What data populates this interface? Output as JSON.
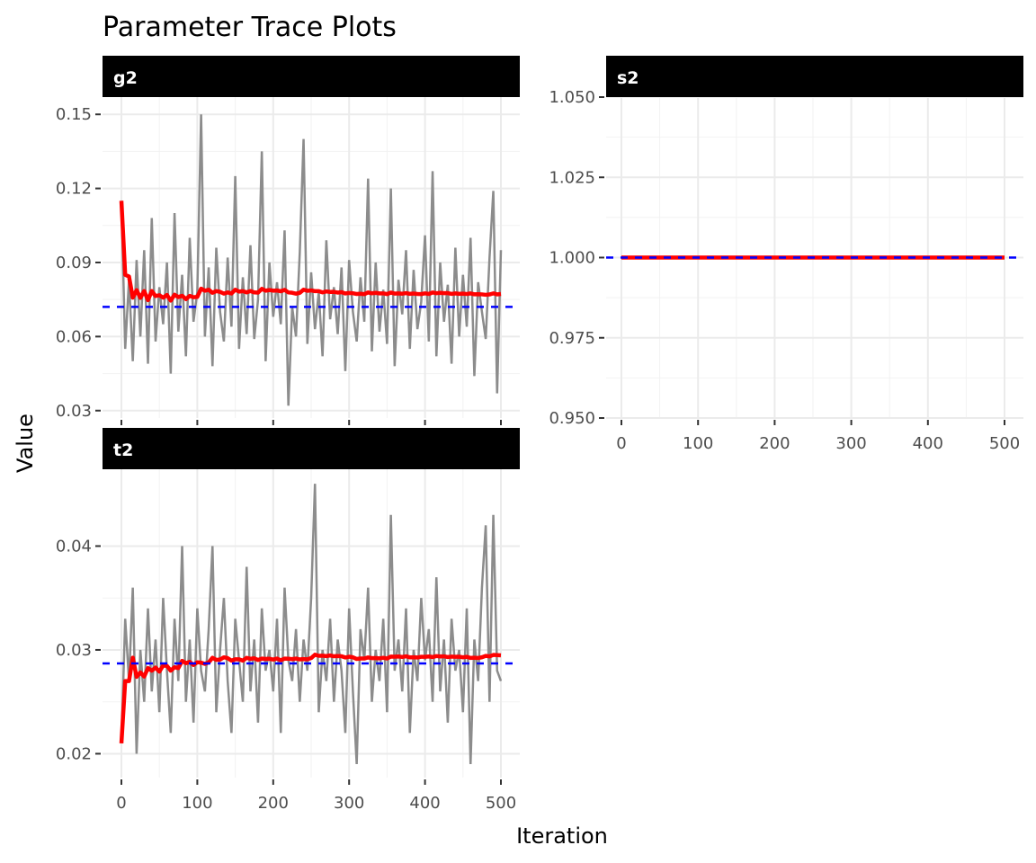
{
  "chart_data": {
    "type": "line",
    "title": "Parameter Trace Plots",
    "xlabel": "Iteration",
    "ylabel": "Value",
    "colors": {
      "trace": "#8c8c8c",
      "running_mean": "#ff0000",
      "mean": "#0000ff",
      "strip": "#000000"
    },
    "x_step": 5,
    "panels": [
      {
        "name": "g2",
        "ylim": [
          0.027,
          0.157
        ],
        "yticks": [
          "0.03",
          "0.06",
          "0.09",
          "0.12",
          "0.15"
        ],
        "ytick_values": [
          0.03,
          0.06,
          0.09,
          0.12,
          0.15
        ],
        "xticks": [],
        "mean": 0.072,
        "trace": [
          0.115,
          0.055,
          0.083,
          0.05,
          0.091,
          0.06,
          0.095,
          0.049,
          0.108,
          0.058,
          0.08,
          0.065,
          0.09,
          0.045,
          0.11,
          0.062,
          0.085,
          0.052,
          0.1,
          0.066,
          0.078,
          0.15,
          0.06,
          0.088,
          0.048,
          0.096,
          0.07,
          0.058,
          0.092,
          0.064,
          0.125,
          0.055,
          0.084,
          0.061,
          0.097,
          0.059,
          0.075,
          0.135,
          0.05,
          0.09,
          0.068,
          0.082,
          0.065,
          0.103,
          0.032,
          0.072,
          0.06,
          0.094,
          0.14,
          0.057,
          0.086,
          0.063,
          0.078,
          0.052,
          0.099,
          0.067,
          0.08,
          0.061,
          0.088,
          0.046,
          0.091,
          0.07,
          0.058,
          0.084,
          0.066,
          0.124,
          0.054,
          0.09,
          0.062,
          0.079,
          0.057,
          0.12,
          0.048,
          0.083,
          0.069,
          0.095,
          0.055,
          0.087,
          0.063,
          0.074,
          0.101,
          0.058,
          0.127,
          0.052,
          0.09,
          0.066,
          0.081,
          0.049,
          0.096,
          0.06,
          0.085,
          0.064,
          0.1,
          0.044,
          0.082,
          0.07,
          0.059,
          0.092,
          0.119,
          0.037,
          0.095
        ]
      },
      {
        "name": "s2",
        "ylim": [
          0.95,
          1.05
        ],
        "yticks": [
          "0.950",
          "0.975",
          "1.000",
          "1.025",
          "1.050"
        ],
        "ytick_values": [
          0.95,
          0.975,
          1.0,
          1.025,
          1.05
        ],
        "xticks": [
          "0",
          "100",
          "200",
          "300",
          "400",
          "500"
        ],
        "mean": 1.0,
        "constant": 1.0
      },
      {
        "name": "t2",
        "ylim": [
          0.0177,
          0.0474
        ],
        "yticks": [
          "0.02",
          "0.03",
          "0.04"
        ],
        "ytick_values": [
          0.02,
          0.03,
          0.04
        ],
        "xticks": [
          "0",
          "100",
          "200",
          "300",
          "400",
          "500"
        ],
        "mean": 0.0287,
        "trace": [
          0.021,
          0.033,
          0.027,
          0.036,
          0.02,
          0.03,
          0.025,
          0.034,
          0.026,
          0.031,
          0.024,
          0.035,
          0.028,
          0.022,
          0.033,
          0.027,
          0.04,
          0.025,
          0.031,
          0.023,
          0.034,
          0.028,
          0.026,
          0.032,
          0.04,
          0.024,
          0.03,
          0.035,
          0.027,
          0.022,
          0.033,
          0.029,
          0.025,
          0.038,
          0.026,
          0.031,
          0.023,
          0.034,
          0.028,
          0.03,
          0.026,
          0.033,
          0.022,
          0.036,
          0.029,
          0.027,
          0.032,
          0.025,
          0.031,
          0.028,
          0.035,
          0.046,
          0.024,
          0.03,
          0.027,
          0.033,
          0.025,
          0.031,
          0.028,
          0.022,
          0.034,
          0.026,
          0.019,
          0.032,
          0.029,
          0.036,
          0.025,
          0.03,
          0.027,
          0.033,
          0.024,
          0.043,
          0.028,
          0.031,
          0.026,
          0.034,
          0.022,
          0.03,
          0.027,
          0.035,
          0.029,
          0.032,
          0.025,
          0.037,
          0.026,
          0.031,
          0.023,
          0.033,
          0.028,
          0.03,
          0.024,
          0.034,
          0.019,
          0.031,
          0.027,
          0.036,
          0.042,
          0.025,
          0.043,
          0.028,
          0.027
        ]
      }
    ]
  }
}
